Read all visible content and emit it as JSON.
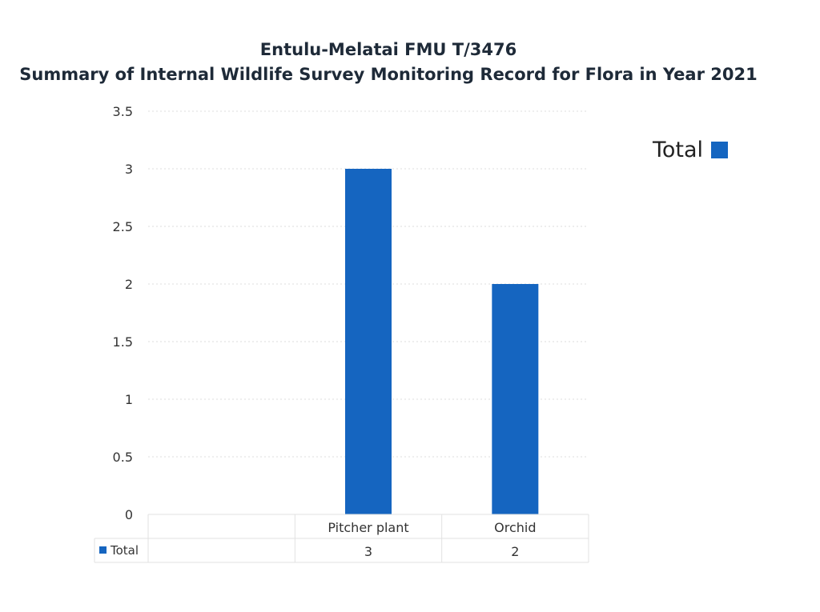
{
  "chart_data": {
    "type": "bar",
    "title": [
      "Entulu-Melatai FMU T/3476",
      "Summary of Internal Wildlife Survey Monitoring Record for Flora in Year 2021"
    ],
    "categories": [
      "",
      "Pitcher plant",
      "Orchid"
    ],
    "series": [
      {
        "name": "Total",
        "values": [
          null,
          3,
          2
        ],
        "color": "#1565c0"
      }
    ],
    "yticks": [
      "0",
      "0.5",
      "1",
      "1.5",
      "2",
      "2.5",
      "3",
      "3.5"
    ],
    "ylim": [
      0,
      3.5
    ],
    "grid": true,
    "legend": {
      "position": "top-right",
      "label": "Total"
    },
    "data_table": {
      "row_label": "Total",
      "cells": [
        "",
        "3",
        "2"
      ]
    }
  }
}
